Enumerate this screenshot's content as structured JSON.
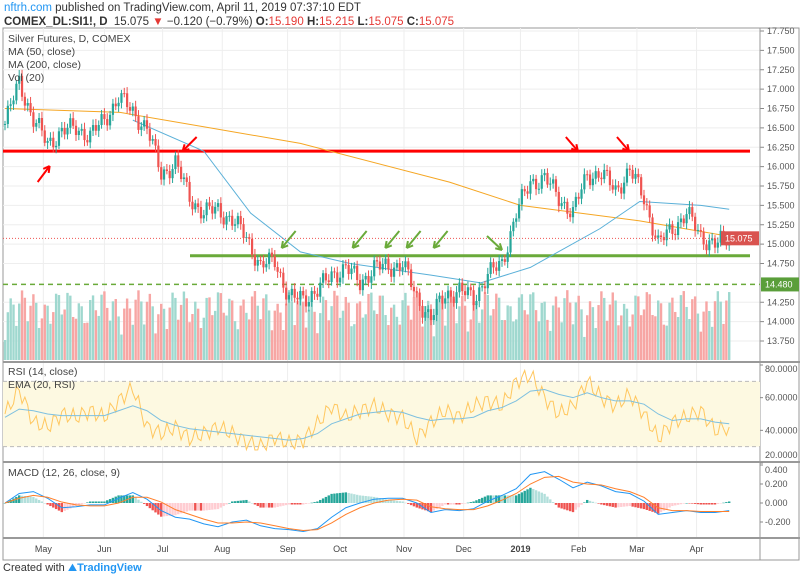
{
  "header": {
    "site": "nftrh.com",
    "published": "published on TradingView.com, April 11, 2019 07:37:10 EDT",
    "symbol": "COMEX_DL:SI1!, D",
    "last": "15.075",
    "change": "−0.120 (−0.79%)",
    "o_label": "O:",
    "o": "15.190",
    "h_label": "H:",
    "h": "15.215",
    "l_label": "L:",
    "l": "15.075",
    "c_label": "C:",
    "c": "15.075"
  },
  "legend": {
    "title": "Silver Futures, D, COMEX",
    "ma50": "MA (50, close)",
    "ma200": "MA (200, close)",
    "vol": "Vol (20)",
    "rsi": "RSI (14, close)",
    "ema": "EMA (20, RSI)",
    "macd": "MACD (12, 26, close, 9)"
  },
  "footer": {
    "prefix": "Created with",
    "brand": "TradingView"
  },
  "colors": {
    "up": "#26a69a",
    "down": "#ef5350",
    "ma50": "#5ab0d8",
    "ma200": "#f5a623",
    "resistance": "#ff0000",
    "support": "#6aaa3a",
    "rsi": "#ffc75f",
    "rsi_ema": "#7ec0e0",
    "macd": "#2196f3",
    "signal": "#ff7f2a"
  },
  "chart_data": {
    "type": "candlestick",
    "title": "Silver Futures, D, COMEX",
    "time_unit": "weeks since 2018-04-18",
    "x_ticks": [
      {
        "label": "May",
        "t": 2.7
      },
      {
        "label": "Jun",
        "t": 7.0
      },
      {
        "label": "Jul",
        "t": 11.1
      },
      {
        "label": "Aug",
        "t": 15.3
      },
      {
        "label": "Sep",
        "t": 19.9
      },
      {
        "label": "Oct",
        "t": 23.6
      },
      {
        "label": "Nov",
        "t": 28.1
      },
      {
        "label": "Dec",
        "t": 32.3
      },
      {
        "label": "2019",
        "t": 36.3
      },
      {
        "label": "Feb",
        "t": 40.4
      },
      {
        "label": "Mar",
        "t": 44.5
      },
      {
        "label": "Apr",
        "t": 48.7
      }
    ],
    "price_ticks": [
      "17.750",
      "17.500",
      "17.250",
      "17.000",
      "16.750",
      "16.500",
      "16.250",
      "16.000",
      "15.750",
      "15.500",
      "15.250",
      "15.000",
      "14.750",
      "14.250",
      "14.000",
      "13.750"
    ],
    "ylim": [
      13.75,
      17.75
    ],
    "weekly_close": [
      16.55,
      17.1,
      16.6,
      16.3,
      16.45,
      16.5,
      16.4,
      16.6,
      16.9,
      16.7,
      16.5,
      15.9,
      16.05,
      15.6,
      15.4,
      15.45,
      15.3,
      15.1,
      14.7,
      14.8,
      14.3,
      14.3,
      14.4,
      14.6,
      14.7,
      14.5,
      14.7,
      14.7,
      14.75,
      14.3,
      14.05,
      14.35,
      14.4,
      14.3,
      14.6,
      14.75,
      15.4,
      15.8,
      15.85,
      15.6,
      15.4,
      15.9,
      15.9,
      15.7,
      15.95,
      15.6,
      15.0,
      15.2,
      15.4,
      15.1,
      15.0,
      15.075
    ],
    "ma50": [
      [
        9,
        16.6
      ],
      [
        14,
        16.2
      ],
      [
        17.3,
        15.4
      ],
      [
        20.8,
        14.9
      ],
      [
        24.3,
        14.75
      ],
      [
        30,
        14.6
      ],
      [
        33.5,
        14.5
      ],
      [
        37,
        14.7
      ],
      [
        41.9,
        15.2
      ],
      [
        44.7,
        15.55
      ],
      [
        49,
        15.5
      ],
      [
        51,
        15.45
      ]
    ],
    "ma200": [
      [
        0,
        16.75
      ],
      [
        8.1,
        16.7
      ],
      [
        20.8,
        16.3
      ],
      [
        31.3,
        15.8
      ],
      [
        36.3,
        15.5
      ],
      [
        44.7,
        15.3
      ],
      [
        51,
        15.1
      ]
    ],
    "last_price": 15.075,
    "levels": [
      {
        "name": "resistance",
        "value": 16.2,
        "style": "solid"
      },
      {
        "name": "support",
        "value": 14.85,
        "style": "solid"
      },
      {
        "name": "support-dashed",
        "value": 14.48,
        "style": "dashed",
        "label": "14.480"
      }
    ],
    "annotations": {
      "red_arrows_weeks": [
        2.3,
        12.3,
        40.2,
        43.8
      ],
      "green_arrows_weeks": [
        19.2,
        24.2,
        26.5,
        28.0,
        29.9,
        35.0
      ]
    },
    "rsi": {
      "ticks": [
        "80.0000",
        "60.0000",
        "40.0000",
        "20.0000"
      ],
      "ylim": [
        20,
        80
      ],
      "bands": [
        30,
        70
      ],
      "rsi": [
        50,
        65,
        45,
        42,
        50,
        48,
        52,
        48,
        58,
        66,
        42,
        38,
        42,
        35,
        38,
        42,
        38,
        33,
        30,
        36,
        32,
        34,
        44,
        55,
        48,
        52,
        55,
        50,
        48,
        35,
        45,
        52,
        48,
        55,
        58,
        55,
        70,
        74,
        60,
        50,
        55,
        70,
        60,
        55,
        62,
        50,
        35,
        45,
        48,
        52,
        40,
        42
      ],
      "ema": [
        48,
        53,
        52,
        50,
        49,
        49,
        49,
        49,
        52,
        55,
        52,
        46,
        43,
        41,
        40,
        39,
        38,
        37,
        36,
        35,
        34,
        35,
        38,
        44,
        47,
        50,
        51,
        52,
        51,
        48,
        46,
        47,
        47,
        48,
        52,
        54,
        58,
        64,
        65,
        62,
        60,
        63,
        60,
        58,
        58,
        56,
        50,
        46,
        47,
        47,
        45,
        44
      ]
    },
    "macd": {
      "ticks": [
        "0.400",
        "0.200",
        "0.000",
        "-0.200"
      ],
      "ylim": [
        -0.35,
        0.4
      ],
      "macd": [
        0,
        0.1,
        0.12,
        0.05,
        -0.05,
        -0.04,
        -0.02,
        -0.02,
        0.05,
        0.11,
        0.04,
        -0.08,
        -0.15,
        -0.17,
        -0.22,
        -0.25,
        -0.2,
        -0.18,
        -0.24,
        -0.27,
        -0.28,
        -0.3,
        -0.27,
        -0.15,
        -0.05,
        0,
        0.04,
        0.05,
        0.05,
        0,
        -0.1,
        -0.07,
        -0.08,
        -0.06,
        0.02,
        0.08,
        0.15,
        0.3,
        0.33,
        0.25,
        0.16,
        0.22,
        0.18,
        0.12,
        0.1,
        0.02,
        -0.12,
        -0.1,
        -0.08,
        -0.1,
        -0.1,
        -0.08
      ],
      "signal": [
        0,
        0.05,
        0.08,
        0.06,
        0.01,
        -0.02,
        -0.03,
        -0.03,
        0,
        0.06,
        0.06,
        0.01,
        -0.07,
        -0.12,
        -0.17,
        -0.21,
        -0.21,
        -0.2,
        -0.21,
        -0.24,
        -0.27,
        -0.29,
        -0.28,
        -0.21,
        -0.12,
        -0.05,
        0,
        0.03,
        0.04,
        0.03,
        -0.04,
        -0.06,
        -0.07,
        -0.07,
        -0.03,
        0.03,
        0.1,
        0.2,
        0.27,
        0.28,
        0.22,
        0.2,
        0.19,
        0.15,
        0.12,
        0.06,
        -0.05,
        -0.08,
        -0.08,
        -0.09,
        -0.09,
        -0.09
      ]
    }
  }
}
